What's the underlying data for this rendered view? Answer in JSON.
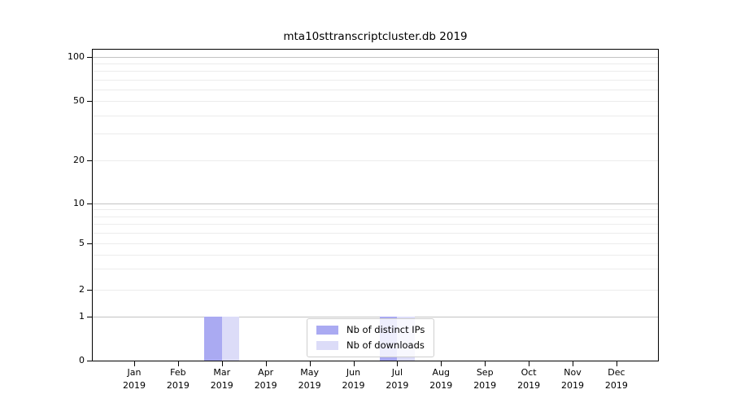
{
  "chart_data": {
    "type": "bar",
    "title": "mta10sttranscriptcluster.db 2019",
    "categories": [
      "Jan",
      "Feb",
      "Mar",
      "Apr",
      "May",
      "Jun",
      "Jul",
      "Aug",
      "Sep",
      "Oct",
      "Nov",
      "Dec"
    ],
    "year_label": "2019",
    "series": [
      {
        "name": "Nb of distinct IPs",
        "color": "#aaaaf2",
        "values": [
          0,
          0,
          1,
          0,
          0,
          0,
          1,
          0,
          0,
          0,
          0,
          0
        ]
      },
      {
        "name": "Nb of downloads",
        "color": "#dcdcf8",
        "values": [
          0,
          0,
          1,
          0,
          0,
          0,
          1,
          0,
          0,
          0,
          0,
          0
        ]
      }
    ],
    "y_ticks": [
      0,
      1,
      2,
      5,
      10,
      20,
      50,
      100
    ],
    "y_major_gridlines": [
      1,
      10,
      100
    ],
    "y_minor_gridlines": [
      2,
      3,
      4,
      5,
      6,
      7,
      8,
      9,
      20,
      30,
      40,
      50,
      60,
      70,
      80,
      90
    ],
    "ylim": [
      0,
      110
    ],
    "y_scale": "symlog",
    "grid": "horizontal",
    "legend_position": "inside-bottom-center"
  }
}
